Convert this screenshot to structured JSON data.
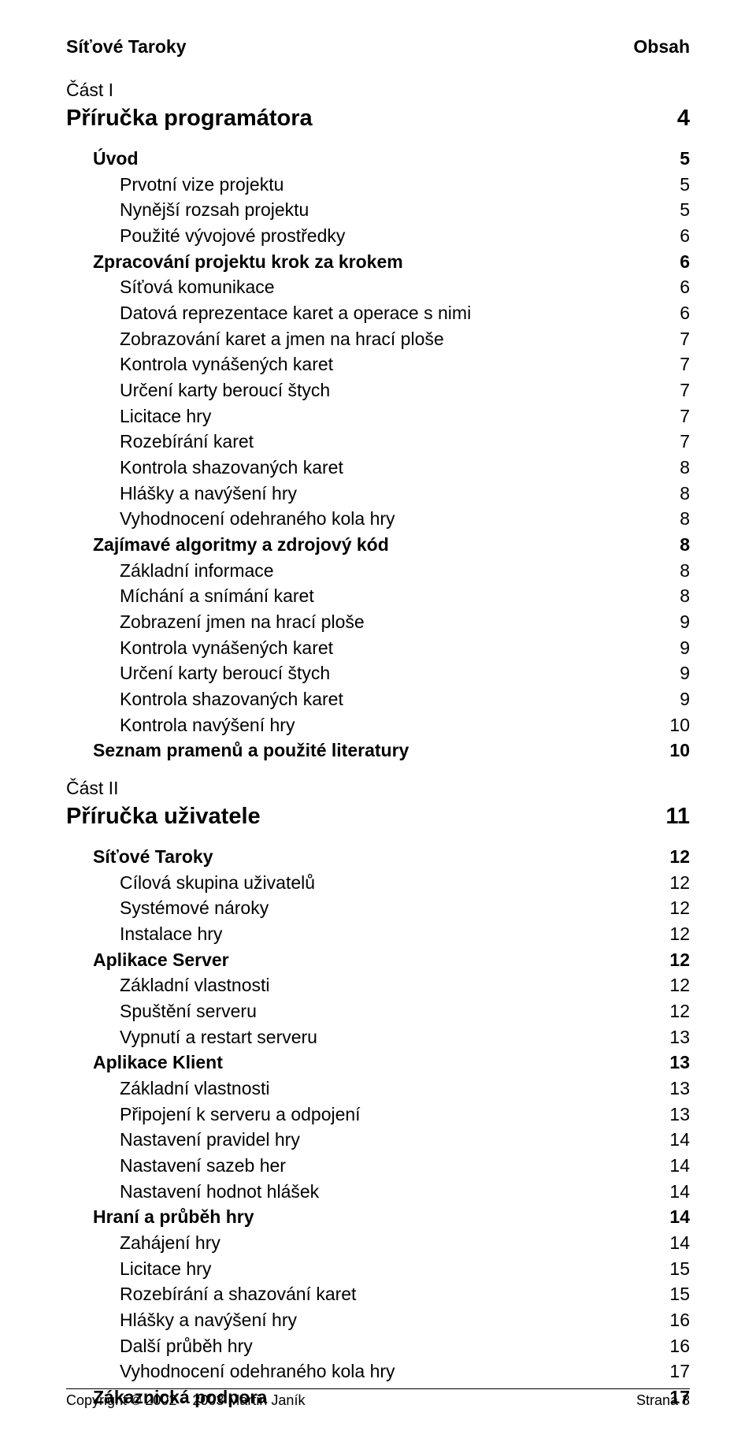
{
  "header": {
    "left": "Síťové Taroky",
    "right": "Obsah"
  },
  "parts": [
    {
      "label": "Část I",
      "title": {
        "text": "Příručka programátora",
        "page": "4"
      },
      "sections": [
        {
          "level": 2,
          "text": "Úvod",
          "page": "5"
        },
        {
          "level": 3,
          "text": "Prvotní vize projektu",
          "page": "5"
        },
        {
          "level": 3,
          "text": "Nynější rozsah projektu",
          "page": "5"
        },
        {
          "level": 3,
          "text": "Použité vývojové prostředky",
          "page": "6"
        },
        {
          "level": 2,
          "text": "Zpracování projektu krok za krokem",
          "page": "6"
        },
        {
          "level": 3,
          "text": "Síťová komunikace",
          "page": "6"
        },
        {
          "level": 3,
          "text": "Datová reprezentace karet a operace s nimi",
          "page": "6"
        },
        {
          "level": 3,
          "text": "Zobrazování karet a jmen na hrací ploše",
          "page": "7"
        },
        {
          "level": 3,
          "text": "Kontrola vynášených karet",
          "page": "7"
        },
        {
          "level": 3,
          "text": "Určení karty beroucí štych",
          "page": "7"
        },
        {
          "level": 3,
          "text": "Licitace hry",
          "page": "7"
        },
        {
          "level": 3,
          "text": "Rozebírání karet",
          "page": "7"
        },
        {
          "level": 3,
          "text": "Kontrola shazovaných karet",
          "page": "8"
        },
        {
          "level": 3,
          "text": "Hlášky a navýšení hry",
          "page": "8"
        },
        {
          "level": 3,
          "text": "Vyhodnocení odehraného kola hry",
          "page": "8"
        },
        {
          "level": 2,
          "text": "Zajímavé algoritmy a zdrojový kód",
          "page": "8"
        },
        {
          "level": 3,
          "text": "Základní informace",
          "page": "8"
        },
        {
          "level": 3,
          "text": "Míchání a snímání karet",
          "page": "8"
        },
        {
          "level": 3,
          "text": "Zobrazení jmen na hrací ploše",
          "page": "9"
        },
        {
          "level": 3,
          "text": "Kontrola vynášených karet",
          "page": "9"
        },
        {
          "level": 3,
          "text": "Určení karty beroucí štych",
          "page": "9"
        },
        {
          "level": 3,
          "text": "Kontrola shazovaných karet",
          "page": "9"
        },
        {
          "level": 3,
          "text": "Kontrola navýšení hry",
          "page": "10"
        },
        {
          "level": 2,
          "text": "Seznam pramenů a použité literatury",
          "page": "10"
        }
      ]
    },
    {
      "label": "Část II",
      "title": {
        "text": "Příručka uživatele",
        "page": "11"
      },
      "sections": [
        {
          "level": 2,
          "text": "Síťové Taroky",
          "page": "12"
        },
        {
          "level": 3,
          "text": "Cílová skupina uživatelů",
          "page": "12"
        },
        {
          "level": 3,
          "text": "Systémové nároky",
          "page": "12"
        },
        {
          "level": 3,
          "text": "Instalace hry",
          "page": "12"
        },
        {
          "level": 2,
          "text": "Aplikace Server",
          "page": "12"
        },
        {
          "level": 3,
          "text": "Základní vlastnosti",
          "page": "12"
        },
        {
          "level": 3,
          "text": "Spuštění serveru",
          "page": "12"
        },
        {
          "level": 3,
          "text": "Vypnutí a restart serveru",
          "page": "13"
        },
        {
          "level": 2,
          "text": "Aplikace Klient",
          "page": "13"
        },
        {
          "level": 3,
          "text": "Základní vlastnosti",
          "page": "13"
        },
        {
          "level": 3,
          "text": "Připojení k serveru a odpojení",
          "page": "13"
        },
        {
          "level": 3,
          "text": "Nastavení pravidel hry",
          "page": "14"
        },
        {
          "level": 3,
          "text": "Nastavení sazeb her",
          "page": "14"
        },
        {
          "level": 3,
          "text": "Nastavení hodnot hlášek",
          "page": "14"
        },
        {
          "level": 2,
          "text": "Hraní a průběh hry",
          "page": "14"
        },
        {
          "level": 3,
          "text": "Zahájení hry",
          "page": "14"
        },
        {
          "level": 3,
          "text": "Licitace hry",
          "page": "15"
        },
        {
          "level": 3,
          "text": "Rozebírání a shazování karet",
          "page": "15"
        },
        {
          "level": 3,
          "text": "Hlášky a navýšení hry",
          "page": "16"
        },
        {
          "level": 3,
          "text": "Další průběh hry",
          "page": "16"
        },
        {
          "level": 3,
          "text": "Vyhodnocení odehraného kola hry",
          "page": "17"
        },
        {
          "level": 2,
          "text": "Zákaznická podpora",
          "page": "17"
        }
      ]
    }
  ],
  "footer": {
    "left_prefix": "Copyright ",
    "left_years": " 2002 – 2003 Martin Janík",
    "right": "Strana 3"
  }
}
